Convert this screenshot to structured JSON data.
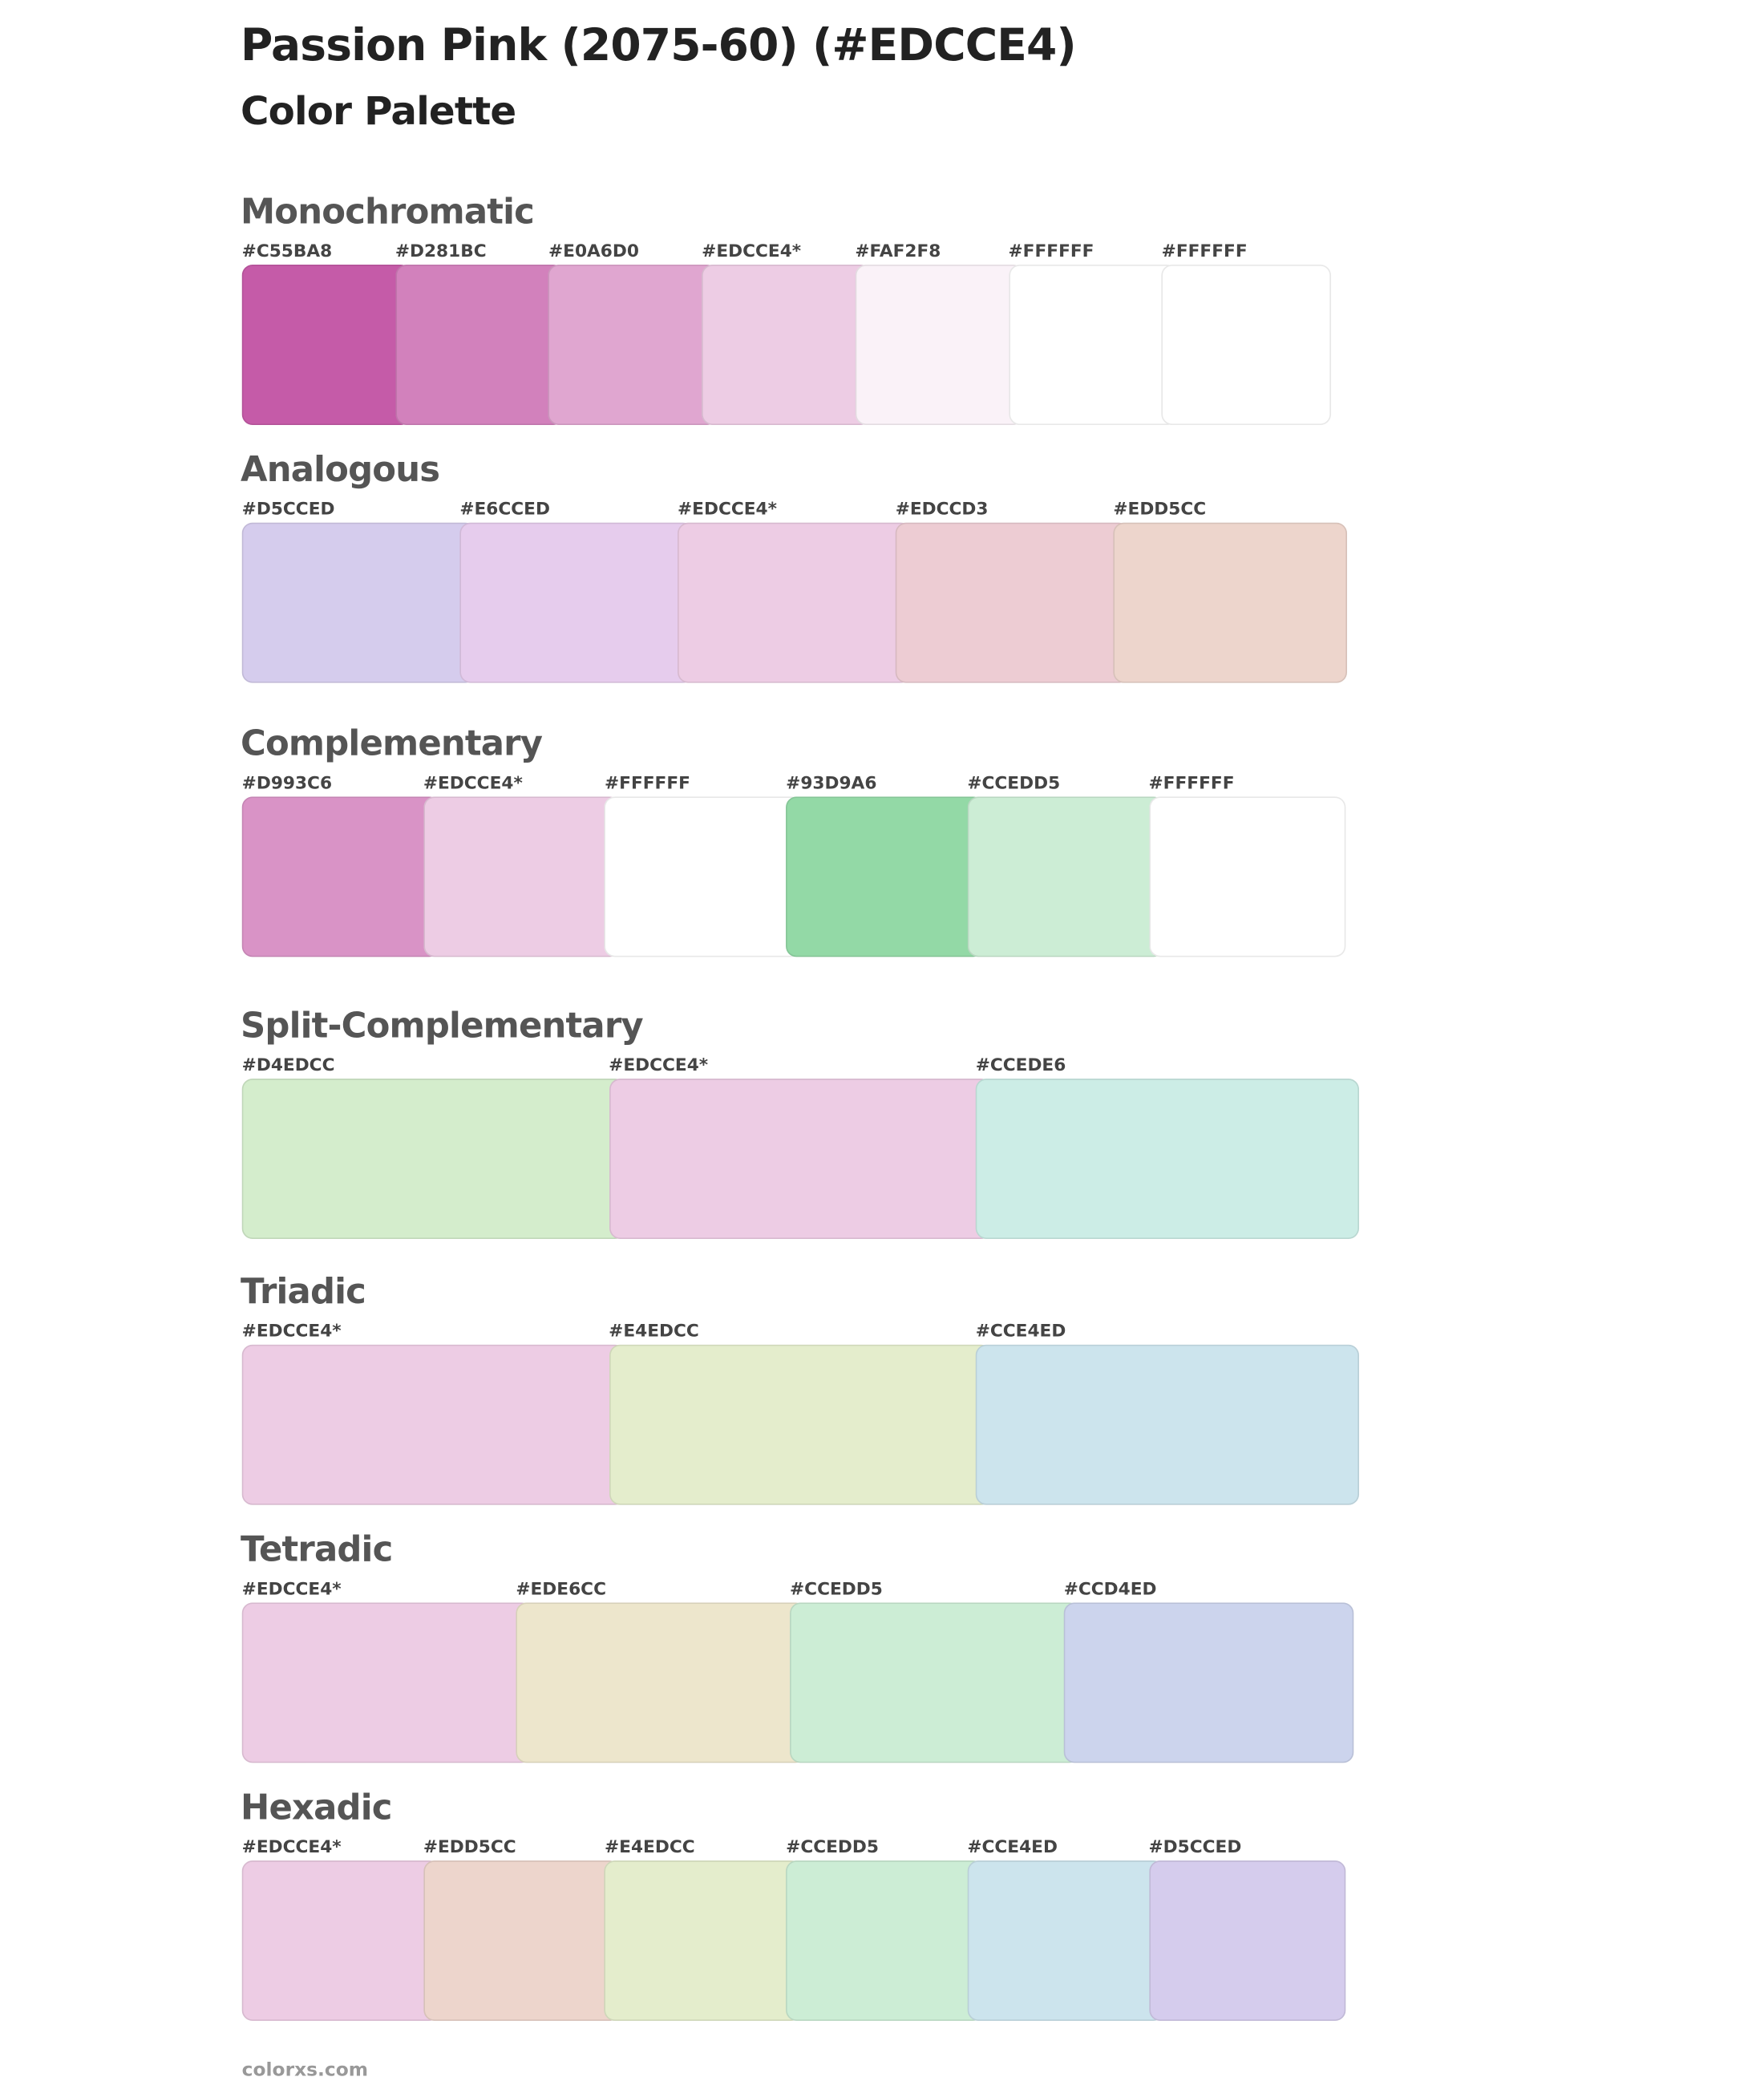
{
  "header": {
    "title": "Passion Pink (2075-60) (#EDCCE4)",
    "subtitle": "Color Palette"
  },
  "sections": [
    {
      "name": "Monochromatic",
      "swatches": [
        {
          "label": "#C55BA8",
          "color": "#C55BA8"
        },
        {
          "label": "#D281BC",
          "color": "#D281BC"
        },
        {
          "label": "#E0A6D0",
          "color": "#E0A6D0"
        },
        {
          "label": "#EDCCE4*",
          "color": "#EDCCE4"
        },
        {
          "label": "#FAF2F8",
          "color": "#FAF2F8"
        },
        {
          "label": "#FFFFFF",
          "color": "#FFFFFF"
        },
        {
          "label": "#FFFFFF",
          "color": "#FFFFFF"
        }
      ]
    },
    {
      "name": "Analogous",
      "swatches": [
        {
          "label": "#D5CCED",
          "color": "#D5CCED"
        },
        {
          "label": "#E6CCED",
          "color": "#E6CCED"
        },
        {
          "label": "#EDCCE4*",
          "color": "#EDCCE4"
        },
        {
          "label": "#EDCCD3",
          "color": "#EDCCD3"
        },
        {
          "label": "#EDD5CC",
          "color": "#EDD5CC"
        }
      ]
    },
    {
      "name": "Complementary",
      "swatches": [
        {
          "label": "#D993C6",
          "color": "#D993C6"
        },
        {
          "label": "#EDCCE4*",
          "color": "#EDCCE4"
        },
        {
          "label": "#FFFFFF",
          "color": "#FFFFFF"
        },
        {
          "label": "#93D9A6",
          "color": "#93D9A6"
        },
        {
          "label": "#CCEDD5",
          "color": "#CCEDD5"
        },
        {
          "label": "#FFFFFF",
          "color": "#FFFFFF"
        }
      ]
    },
    {
      "name": "Split-Complementary",
      "swatches": [
        {
          "label": "#D4EDCC",
          "color": "#D4EDCC"
        },
        {
          "label": "#EDCCE4*",
          "color": "#EDCCE4"
        },
        {
          "label": "#CCEDE6",
          "color": "#CCEDE6"
        }
      ]
    },
    {
      "name": "Triadic",
      "swatches": [
        {
          "label": "#EDCCE4*",
          "color": "#EDCCE4"
        },
        {
          "label": "#E4EDCC",
          "color": "#E4EDCC"
        },
        {
          "label": "#CCE4ED",
          "color": "#CCE4ED"
        }
      ]
    },
    {
      "name": "Tetradic",
      "swatches": [
        {
          "label": "#EDCCE4*",
          "color": "#EDCCE4"
        },
        {
          "label": "#EDE6CC",
          "color": "#EDE6CC"
        },
        {
          "label": "#CCEDD5",
          "color": "#CCEDD5"
        },
        {
          "label": "#CCD4ED",
          "color": "#CCD4ED"
        }
      ]
    },
    {
      "name": "Hexadic",
      "swatches": [
        {
          "label": "#EDCCE4*",
          "color": "#EDCCE4"
        },
        {
          "label": "#EDD5CC",
          "color": "#EDD5CC"
        },
        {
          "label": "#E4EDCC",
          "color": "#E4EDCC"
        },
        {
          "label": "#CCEDD5",
          "color": "#CCEDD5"
        },
        {
          "label": "#CCE4ED",
          "color": "#CCE4ED"
        },
        {
          "label": "#D5CCED",
          "color": "#D5CCED"
        }
      ]
    }
  ],
  "footer": "colorxs.com"
}
